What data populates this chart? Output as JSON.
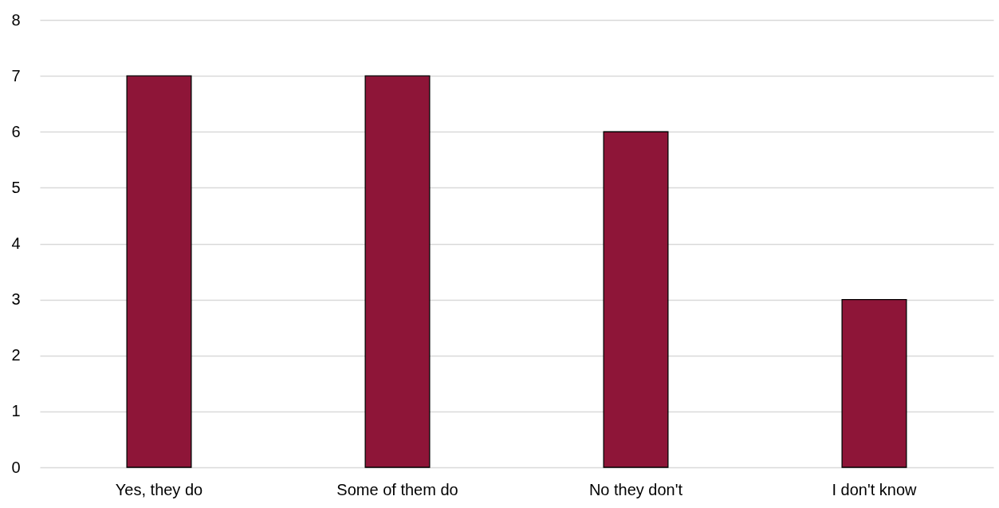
{
  "chart_data": {
    "type": "bar",
    "categories": [
      "Yes, they do",
      "Some of them do",
      "No they don't",
      "I don't know"
    ],
    "values": [
      7,
      7,
      6,
      3
    ],
    "color": "#8e1538",
    "ylim": [
      0,
      8
    ],
    "yticks": [
      0,
      1,
      2,
      3,
      4,
      5,
      6,
      7,
      8
    ],
    "grid": "y"
  }
}
